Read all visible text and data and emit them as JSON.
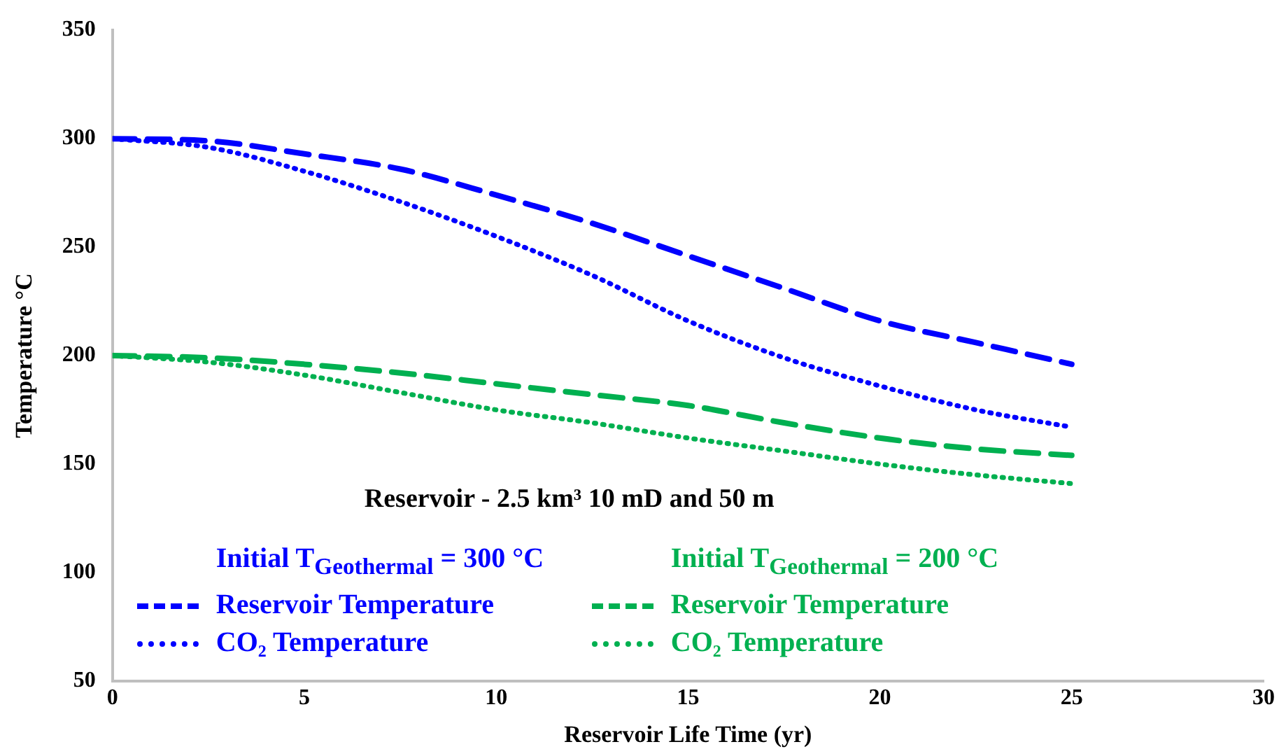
{
  "chart_data": {
    "type": "line",
    "xlabel": "Reservoir Life Time (yr)",
    "ylabel": "Temperature °C",
    "x": [
      0,
      2.5,
      5,
      7.5,
      10,
      12.5,
      15,
      17.5,
      20,
      22.5,
      25
    ],
    "xlim": [
      0,
      30
    ],
    "xticks": [
      0,
      5,
      10,
      15,
      20,
      25,
      30
    ],
    "ylim": [
      50,
      350
    ],
    "yticks": [
      50,
      100,
      150,
      200,
      250,
      300,
      350
    ],
    "grid": false,
    "legend": "bottom",
    "marker": "none",
    "annotations": [
      "Reservoir - 2.5 km³ 10 mD and 50 m",
      "Initial T$_{Geothermal}$ = 300 °C",
      "Initial T$_{Geothermal}$ = 200 °C"
    ],
    "series": [
      {
        "name": "Reservoir Temperature",
        "color": "#0000ff",
        "line_style": "dashed",
        "values": [
          300,
          299,
          293,
          286,
          274,
          261,
          246,
          231,
          216,
          206,
          196
        ]
      },
      {
        "name": "CO₂ Temperature",
        "color": "#0000ff",
        "line_style": "dotted",
        "values": [
          300,
          296,
          285,
          271,
          255,
          237,
          216,
          199,
          186,
          175,
          167
        ]
      },
      {
        "name": "Reservoir Temperature",
        "color": "#00b050",
        "line_style": "dashed",
        "values": [
          200,
          199,
          196,
          192,
          187,
          182,
          177,
          169,
          162,
          157,
          154
        ]
      },
      {
        "name": "CO₂ Temperature",
        "color": "#00b050",
        "line_style": "dotted",
        "values": [
          200,
          197,
          191,
          183,
          175,
          169,
          162,
          156,
          150,
          145,
          141
        ]
      }
    ]
  }
}
